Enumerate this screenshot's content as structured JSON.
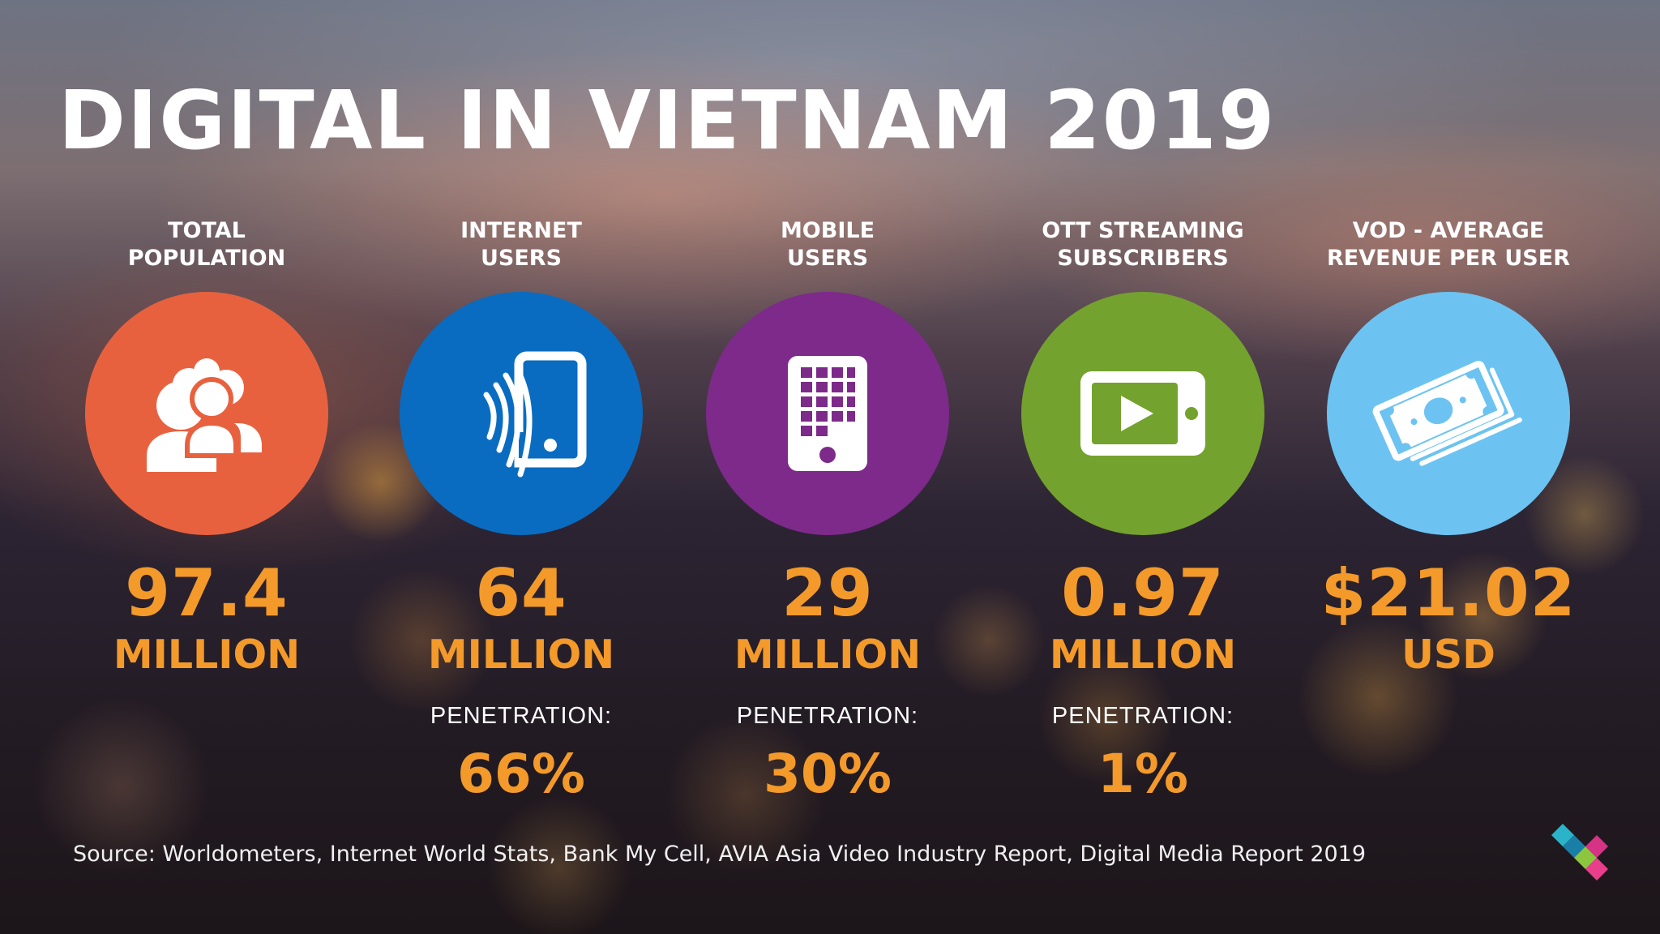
{
  "title": "DIGITAL IN VIETNAM 2019",
  "stats": [
    {
      "label_line1": "TOTAL",
      "label_line2": "POPULATION",
      "icon": "people-group-icon",
      "color": "#e8613f",
      "value": "97.4",
      "unit": "MILLION",
      "penetration_label": "",
      "penetration_value": ""
    },
    {
      "label_line1": "INTERNET",
      "label_line2": "USERS",
      "icon": "phone-signal-icon",
      "color": "#0a6cc0",
      "value": "64",
      "unit": "MILLION",
      "penetration_label": "PENETRATION:",
      "penetration_value": "66%"
    },
    {
      "label_line1": "MOBILE",
      "label_line2": "USERS",
      "icon": "mobile-phone-icon",
      "color": "#7d2a8a",
      "value": "29",
      "unit": "MILLION",
      "penetration_label": "PENETRATION:",
      "penetration_value": "30%"
    },
    {
      "label_line1": "OTT STREAMING",
      "label_line2": "SUBSCRIBERS",
      "icon": "video-play-icon",
      "color": "#74a22e",
      "value": "0.97",
      "unit": "MILLION",
      "penetration_label": "PENETRATION:",
      "penetration_value": "1%"
    },
    {
      "label_line1": "VOD - AVERAGE",
      "label_line2": "REVENUE PER USER",
      "icon": "money-stack-icon",
      "color": "#6cc3f1",
      "value": "$21.02",
      "unit": "USD",
      "penetration_label": "",
      "penetration_value": ""
    }
  ],
  "source": "Source: Worldometers, Internet World Stats, Bank My Cell, AVIA Asia Video Industry Report, Digital Media Report 2019",
  "accent_color": "#f39a2a",
  "logo": "cube-logo-icon"
}
